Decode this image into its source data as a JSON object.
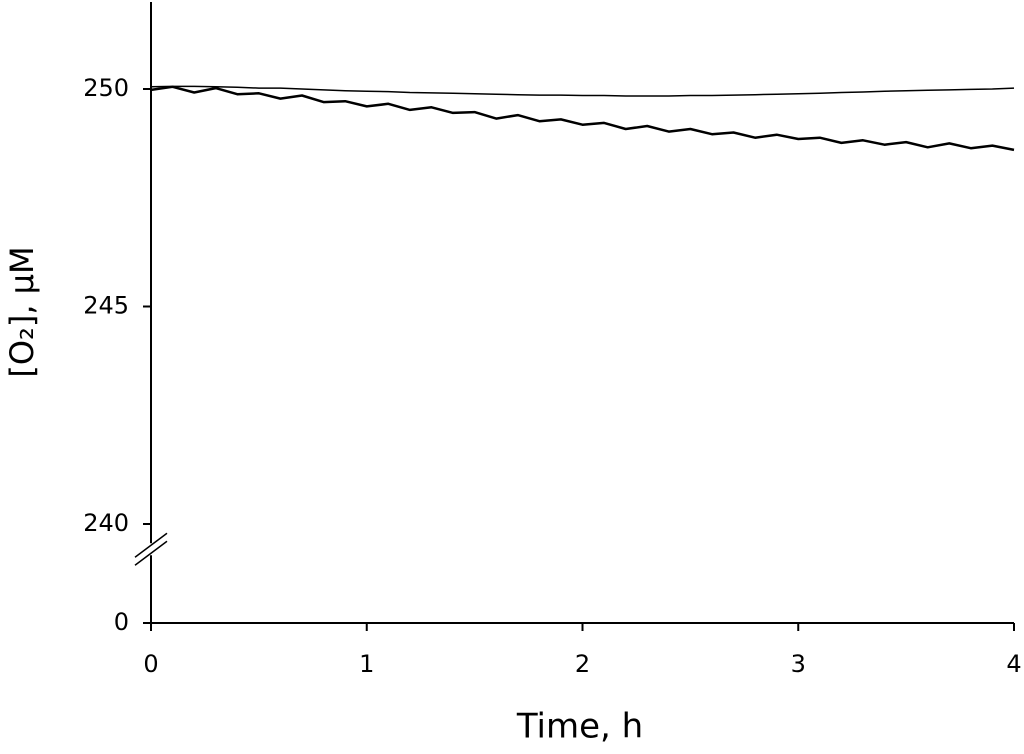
{
  "chart_data": {
    "type": "line",
    "x_label": "Time, h",
    "y_label": "[O₂], μM",
    "x": [
      0,
      0.1,
      0.2,
      0.3,
      0.4,
      0.5,
      0.6,
      0.7,
      0.8,
      0.9,
      1.0,
      1.1,
      1.2,
      1.3,
      1.4,
      1.5,
      1.6,
      1.7,
      1.8,
      1.9,
      2.0,
      2.1,
      2.2,
      2.3,
      2.4,
      2.5,
      2.6,
      2.7,
      2.8,
      2.9,
      3.0,
      3.1,
      3.2,
      3.3,
      3.4,
      3.5,
      3.6,
      3.7,
      3.8,
      3.9,
      4.0
    ],
    "series": [
      {
        "color": "#000000",
        "width": 1.5,
        "values": [
          250.05,
          250.06,
          250.06,
          250.05,
          250.04,
          250.02,
          250.02,
          250.0,
          249.98,
          249.96,
          249.95,
          249.94,
          249.92,
          249.91,
          249.9,
          249.89,
          249.88,
          249.87,
          249.86,
          249.86,
          249.85,
          249.85,
          249.84,
          249.84,
          249.84,
          249.85,
          249.85,
          249.86,
          249.87,
          249.88,
          249.89,
          249.9,
          249.92,
          249.93,
          249.95,
          249.96,
          249.97,
          249.98,
          249.99,
          250.0,
          250.02
        ]
      },
      {
        "color": "#000000",
        "width": 2.5,
        "values": [
          249.98,
          250.05,
          249.92,
          250.02,
          249.88,
          249.9,
          249.78,
          249.85,
          249.7,
          249.72,
          249.6,
          249.66,
          249.52,
          249.58,
          249.45,
          249.47,
          249.32,
          249.4,
          249.26,
          249.3,
          249.18,
          249.22,
          249.08,
          249.15,
          249.02,
          249.08,
          248.96,
          249.0,
          248.88,
          248.95,
          248.85,
          248.88,
          248.76,
          248.82,
          248.72,
          248.78,
          248.66,
          248.75,
          248.64,
          248.7,
          248.6
        ]
      }
    ],
    "xlim": [
      0,
      4
    ],
    "xticks": [
      0,
      1,
      2,
      3,
      4
    ],
    "ylim": [
      0,
      252
    ],
    "yticks": [
      0,
      240,
      245,
      250
    ],
    "y_break": [
      0,
      238
    ],
    "grid": false
  }
}
